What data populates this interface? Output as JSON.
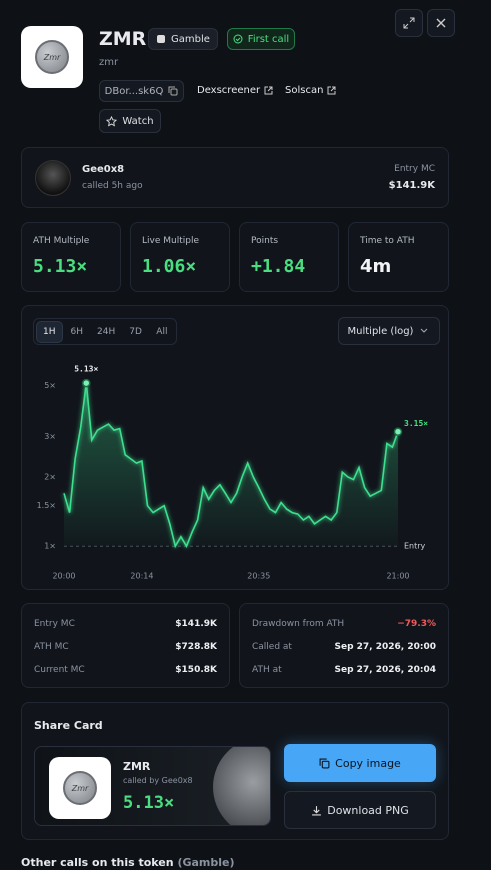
{
  "header": {
    "title": "ZMR",
    "ticker": "zmr",
    "logo_text": "Zmr",
    "badges": [
      "Gamble",
      "First call"
    ],
    "address": "DBor...sk6Q",
    "links": [
      "Dexscreener",
      "Solscan"
    ],
    "watch": "Watch"
  },
  "caller": {
    "name": "Gee0x8",
    "called": "called 5h ago",
    "entry_label": "Entry MC",
    "entry_value": "$141.9K"
  },
  "stats": [
    {
      "label": "ATH Multiple",
      "value": "5.13×"
    },
    {
      "label": "Live Multiple",
      "value": "1.06×"
    },
    {
      "label": "Points",
      "value": "+1.84"
    },
    {
      "label": "Time to ATH",
      "value": "4m"
    }
  ],
  "chart_controls": {
    "ranges": [
      "1H",
      "6H",
      "24H",
      "7D",
      "All"
    ],
    "selected": 0,
    "scale": "Multiple (log)"
  },
  "chart_data": {
    "type": "line",
    "color": "#3ee08f",
    "log_scale": true,
    "grid": false,
    "x": [
      "20:00",
      "20:01",
      "20:02",
      "20:03",
      "20:04",
      "20:05",
      "20:06",
      "20:07",
      "20:08",
      "20:09",
      "20:10",
      "20:11",
      "20:12",
      "20:13",
      "20:14",
      "20:15",
      "20:16",
      "20:17",
      "20:18",
      "20:19",
      "20:20",
      "20:21",
      "20:22",
      "20:23",
      "20:24",
      "20:25",
      "20:26",
      "20:27",
      "20:28",
      "20:29",
      "20:30",
      "20:31",
      "20:32",
      "20:33",
      "20:34",
      "20:35",
      "20:36",
      "20:37",
      "20:38",
      "20:39",
      "20:40",
      "20:41",
      "20:42",
      "20:43",
      "20:44",
      "20:45",
      "20:46",
      "20:47",
      "20:48",
      "20:49",
      "20:50",
      "20:51",
      "20:52",
      "20:53",
      "20:54",
      "20:55",
      "20:56",
      "20:57",
      "20:58",
      "20:59",
      "21:00"
    ],
    "values": [
      1.7,
      1.4,
      2.4,
      3.3,
      5.13,
      2.9,
      3.2,
      3.3,
      3.4,
      3.2,
      3.25,
      2.5,
      2.4,
      2.3,
      2.35,
      1.5,
      1.4,
      1.45,
      1.5,
      1.25,
      1.0,
      1.1,
      1.0,
      1.15,
      1.3,
      1.8,
      1.6,
      1.75,
      1.85,
      1.7,
      1.55,
      1.7,
      2.0,
      2.3,
      2.0,
      1.8,
      1.6,
      1.45,
      1.4,
      1.55,
      1.45,
      1.4,
      1.38,
      1.3,
      1.35,
      1.25,
      1.3,
      1.35,
      1.3,
      1.4,
      2.1,
      2.0,
      1.95,
      2.2,
      1.8,
      1.65,
      1.7,
      1.75,
      2.8,
      2.7,
      3.15
    ],
    "value_labels": [
      null,
      null,
      null,
      null,
      "5.13×",
      null,
      null,
      null,
      null,
      null,
      null,
      null,
      null,
      null,
      null,
      null,
      null,
      null,
      null,
      null,
      null,
      null,
      null,
      null,
      null,
      null,
      null,
      null,
      null,
      null,
      null,
      null,
      null,
      null,
      null,
      null,
      null,
      null,
      null,
      null,
      null,
      null,
      null,
      null,
      null,
      null,
      null,
      null,
      null,
      null,
      null,
      null,
      null,
      null,
      null,
      null,
      null,
      null,
      null,
      null,
      "3.15×"
    ],
    "xlim": [
      "20:00",
      "21:00"
    ],
    "xticks": [
      "20:00",
      "20:14",
      "20:35",
      "21:00"
    ],
    "ylim": [
      0.82,
      6.4
    ],
    "yticks": [
      {
        "value": 1,
        "label": "1×"
      },
      {
        "value": 1.5,
        "label": "1.5×"
      },
      {
        "value": 2,
        "label": "2×"
      },
      {
        "value": 3,
        "label": "3×"
      },
      {
        "value": 5,
        "label": "5×"
      }
    ],
    "entry_line": {
      "value": 1,
      "label": "Entry"
    }
  },
  "market": [
    {
      "label": "Entry MC",
      "value": "$141.9K"
    },
    {
      "label": "ATH MC",
      "value": "$728.8K"
    },
    {
      "label": "Current MC",
      "value": "$150.8K"
    }
  ],
  "timing": [
    {
      "label": "Drawdown from ATH",
      "value": "−79.3%"
    },
    {
      "label": "Called at",
      "value": "Sep 27, 2026, 20:00"
    },
    {
      "label": "ATH at",
      "value": "Sep 27, 2026, 20:04"
    }
  ],
  "share_card": {
    "title": "Share Card",
    "name": "ZMR",
    "caller": "called by Gee0x8",
    "multiple": "5.13×",
    "copy": "Copy image",
    "download": "Download PNG"
  },
  "other_calls": {
    "title": "Other calls on this token",
    "tag": "(Gamble)"
  }
}
